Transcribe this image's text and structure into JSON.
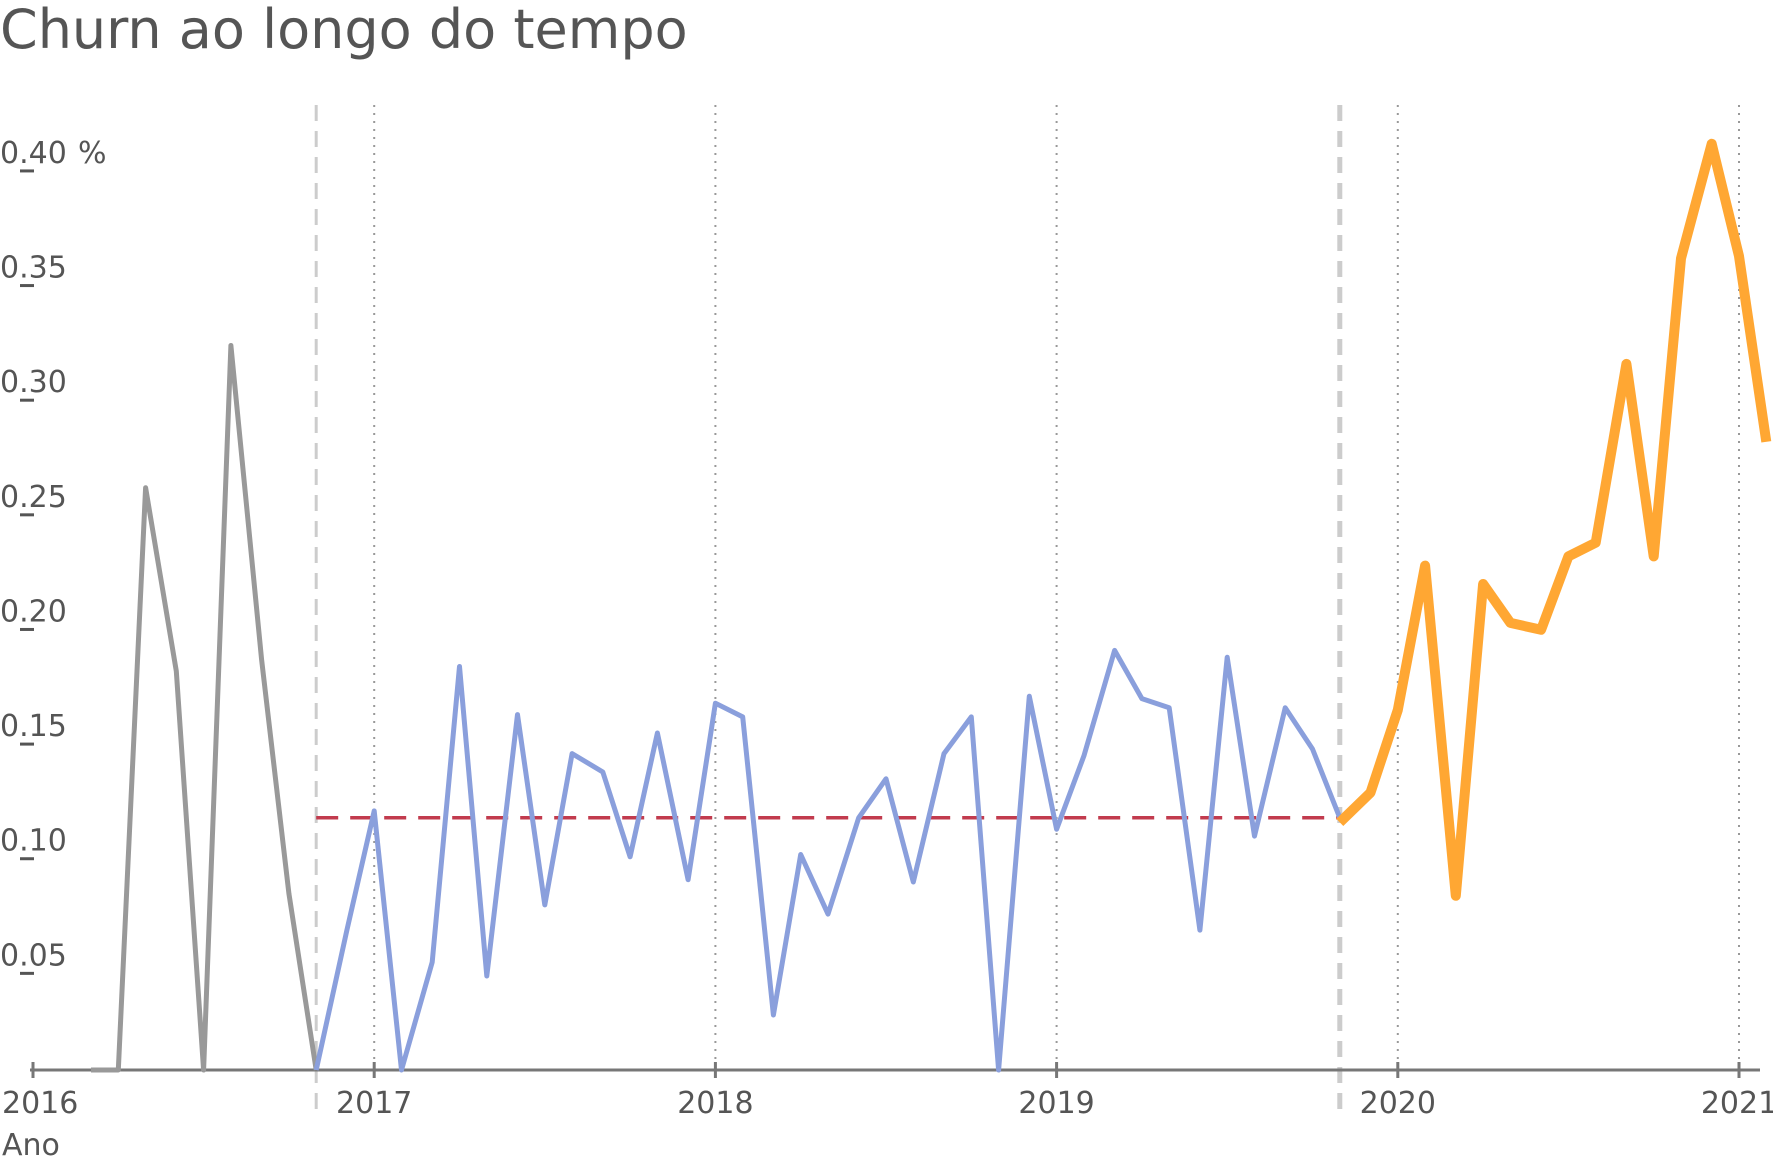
{
  "chart_data": {
    "type": "line",
    "title": "Churn ao longo do tempo",
    "xlabel": "Ano",
    "ylabel": "",
    "y_unit": "%",
    "xlim": [
      2016.0,
      2021.1
    ],
    "ylim": [
      0,
      0.41
    ],
    "x_ticks": [
      {
        "value": 2016,
        "label": "2016"
      },
      {
        "value": 2017,
        "label": "2017"
      },
      {
        "value": 2018,
        "label": "2018"
      },
      {
        "value": 2019,
        "label": "2019"
      },
      {
        "value": 2020,
        "label": "2020"
      },
      {
        "value": 2021,
        "label": "2021"
      }
    ],
    "y_ticks": [
      {
        "value": 0.05,
        "label": "0.05"
      },
      {
        "value": 0.1,
        "label": "0.10"
      },
      {
        "value": 0.15,
        "label": "0.15"
      },
      {
        "value": 0.2,
        "label": "0.20"
      },
      {
        "value": 0.25,
        "label": "0.25"
      },
      {
        "value": 0.3,
        "label": "0.30"
      },
      {
        "value": 0.35,
        "label": "0.35"
      },
      {
        "value": 0.4,
        "label": "0.40"
      }
    ],
    "grid": {
      "vertical": true,
      "horizontal": false
    },
    "period_boundaries": [
      2016.83,
      2019.83
    ],
    "reference_line": {
      "value": 0.11,
      "x_range": [
        2016.83,
        2019.83
      ],
      "color": "#c23b4e"
    },
    "series": [
      {
        "color": "#999999",
        "x": [
          2016.17,
          2016.25,
          2016.33,
          2016.42,
          2016.5,
          2016.58,
          2016.67,
          2016.75,
          2016.83
        ],
        "y": [
          0.0,
          0.0,
          0.254,
          0.174,
          0.0,
          0.316,
          0.179,
          0.077,
          0.0
        ]
      },
      {
        "color": "#8a9fdc",
        "x": [
          2016.83,
          2016.92,
          2017.0,
          2017.08,
          2017.17,
          2017.25,
          2017.33,
          2017.42,
          2017.5,
          2017.58,
          2017.67,
          2017.75,
          2017.83,
          2017.92,
          2018.0,
          2018.08,
          2018.17,
          2018.25,
          2018.33,
          2018.42,
          2018.5,
          2018.58,
          2018.67,
          2018.75,
          2018.83,
          2018.92,
          2019.0,
          2019.08,
          2019.17,
          2019.25,
          2019.33,
          2019.42,
          2019.5,
          2019.58,
          2019.67,
          2019.75,
          2019.83
        ],
        "y": [
          0.0,
          0.061,
          0.113,
          0.0,
          0.047,
          0.176,
          0.041,
          0.155,
          0.072,
          0.138,
          0.13,
          0.093,
          0.147,
          0.083,
          0.16,
          0.154,
          0.024,
          0.094,
          0.068,
          0.11,
          0.127,
          0.082,
          0.138,
          0.154,
          0.0,
          0.163,
          0.105,
          0.137,
          0.183,
          0.162,
          0.158,
          0.061,
          0.18,
          0.102,
          0.158,
          0.14,
          0.11
        ]
      },
      {
        "color": "#ffa733",
        "x": [
          2019.83,
          2019.92,
          2020.0,
          2020.08,
          2020.17,
          2020.25,
          2020.33,
          2020.42,
          2020.5,
          2020.58,
          2020.67,
          2020.75,
          2020.83,
          2020.92,
          2021.0,
          2021.08
        ],
        "y": [
          0.108,
          0.121,
          0.157,
          0.22,
          0.076,
          0.212,
          0.195,
          0.192,
          0.224,
          0.23,
          0.308,
          0.224,
          0.354,
          0.404,
          0.355,
          0.274
        ]
      }
    ]
  }
}
